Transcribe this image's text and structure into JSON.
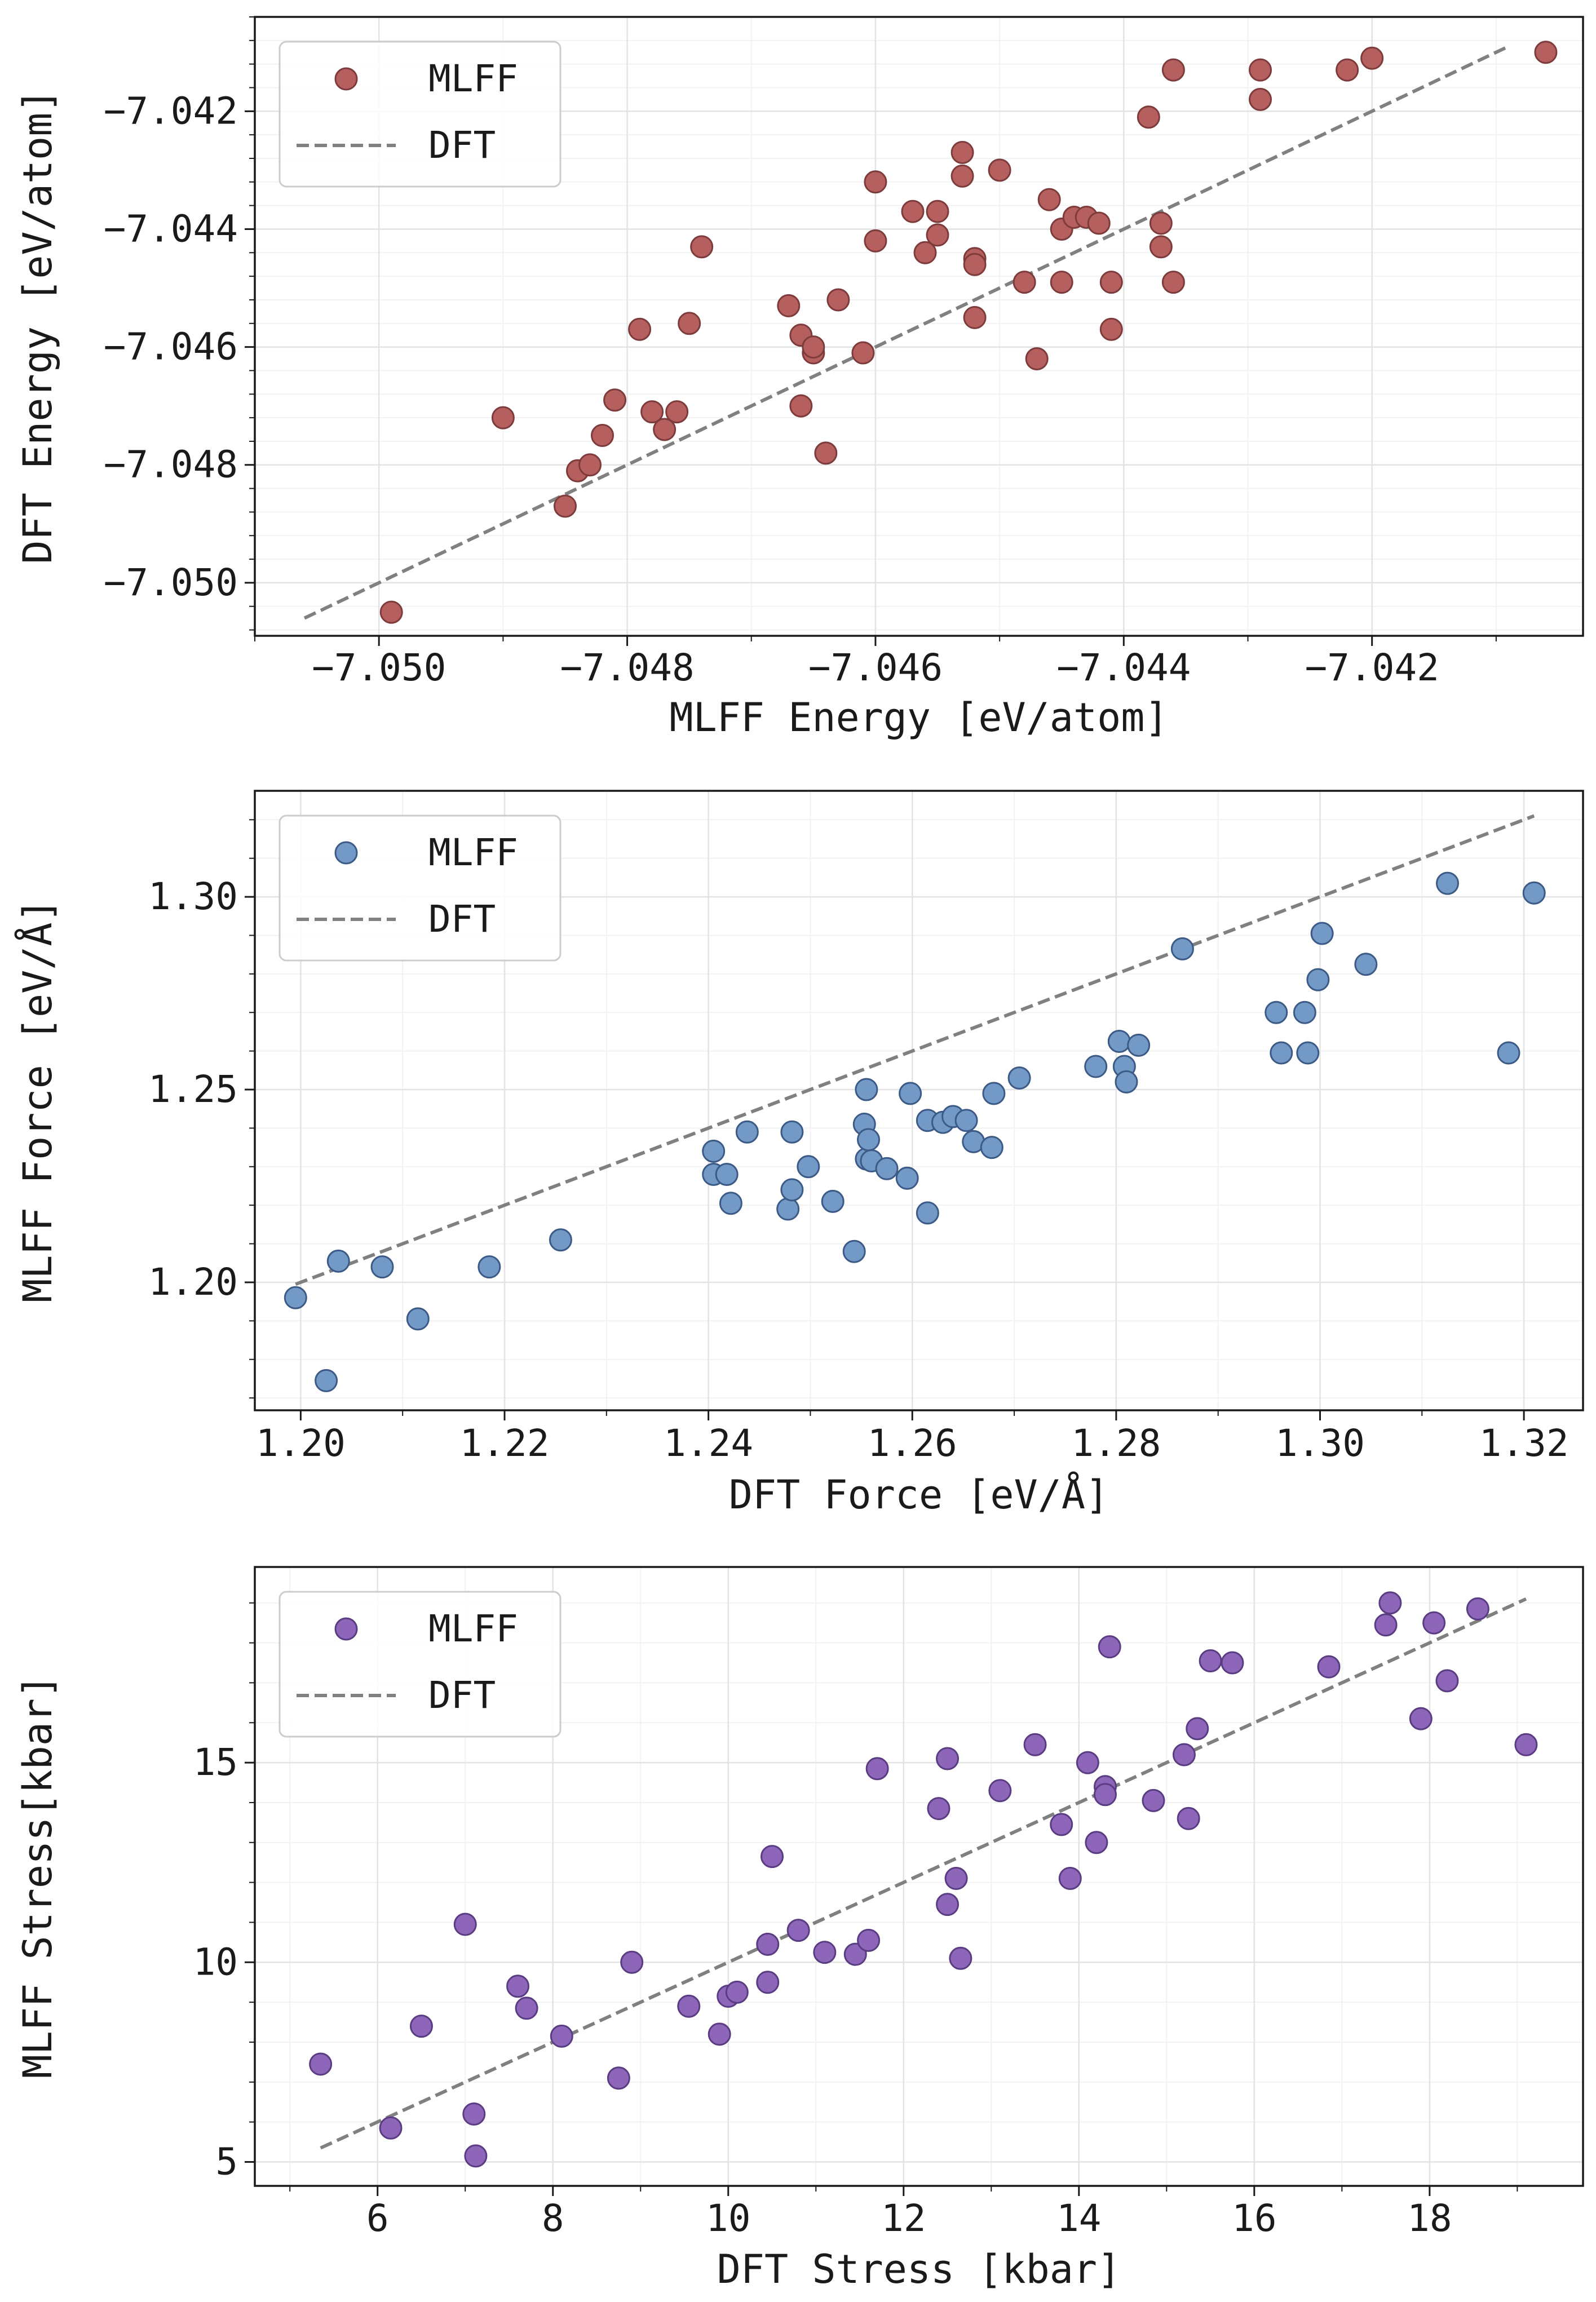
{
  "chart_data": [
    {
      "type": "scatter",
      "xlabel": "MLFF Energy [eV/atom]",
      "ylabel": "DFT Energy [eV/atom]",
      "xlim": [
        -7.051,
        -7.0403
      ],
      "ylim": [
        -7.0509,
        -7.0404
      ],
      "xticks": [
        -7.05,
        -7.048,
        -7.046,
        -7.044,
        -7.042
      ],
      "yticks": [
        -7.05,
        -7.048,
        -7.046,
        -7.044,
        -7.042
      ],
      "xtick_labels": [
        "−7.050",
        "−7.048",
        "−7.046",
        "−7.044",
        "−7.042"
      ],
      "ytick_labels": [
        "−7.050",
        "−7.048",
        "−7.046",
        "−7.044",
        "−7.042"
      ],
      "grid": true,
      "legend": {
        "position": "top-left",
        "entries": [
          "MLFF",
          "DFT"
        ]
      },
      "series": [
        {
          "name": "MLFF",
          "kind": "scatter",
          "color": "#b5605f",
          "edge": "#7d3b3b",
          "x": [
            -7.0499,
            -7.049,
            -7.0485,
            -7.0484,
            -7.0483,
            -7.0482,
            -7.0481,
            -7.0479,
            -7.0478,
            -7.0477,
            -7.0476,
            -7.0475,
            -7.0474,
            -7.0467,
            -7.0466,
            -7.0466,
            -7.0465,
            -7.0465,
            -7.0464,
            -7.0463,
            -7.0461,
            -7.046,
            -7.046,
            -7.0457,
            -7.0456,
            -7.0455,
            -7.0455,
            -7.0453,
            -7.0453,
            -7.0452,
            -7.0452,
            -7.0452,
            -7.045,
            -7.0448,
            -7.0447,
            -7.0446,
            -7.0445,
            -7.0445,
            -7.0444,
            -7.0443,
            -7.0442,
            -7.0441,
            -7.0441,
            -7.0438,
            -7.0437,
            -7.0437,
            -7.0436,
            -7.0436,
            -7.0429,
            -7.0429,
            -7.0422,
            -7.042,
            -7.0406
          ],
          "y": [
            -7.0505,
            -7.0472,
            -7.0487,
            -7.0481,
            -7.048,
            -7.0475,
            -7.0469,
            -7.0457,
            -7.0471,
            -7.0474,
            -7.0471,
            -7.0456,
            -7.0443,
            -7.0453,
            -7.0458,
            -7.047,
            -7.0461,
            -7.046,
            -7.0478,
            -7.0452,
            -7.0461,
            -7.0432,
            -7.0442,
            -7.0437,
            -7.0444,
            -7.0441,
            -7.0437,
            -7.0427,
            -7.0431,
            -7.0445,
            -7.0446,
            -7.0455,
            -7.043,
            -7.0449,
            -7.0462,
            -7.0435,
            -7.044,
            -7.0449,
            -7.0438,
            -7.0438,
            -7.0439,
            -7.0449,
            -7.0457,
            -7.0421,
            -7.0439,
            -7.0443,
            -7.0413,
            -7.0449,
            -7.0418,
            -7.0413,
            -7.0413,
            -7.0411,
            -7.041
          ]
        },
        {
          "name": "DFT",
          "kind": "line",
          "style": "dashed",
          "color": "#808080",
          "x": [
            -7.0506,
            -7.0409
          ],
          "y": [
            -7.0506,
            -7.0409
          ]
        }
      ]
    },
    {
      "type": "scatter",
      "xlabel": "DFT Force [eV/Å]",
      "ylabel": "MLFF Force [eV/Å]",
      "xlim": [
        1.1955,
        1.3258
      ],
      "ylim": [
        1.1668,
        1.3275
      ],
      "xticks": [
        1.2,
        1.22,
        1.24,
        1.26,
        1.28,
        1.3,
        1.32
      ],
      "yticks": [
        1.2,
        1.25,
        1.3
      ],
      "xtick_labels": [
        "1.20",
        "1.22",
        "1.24",
        "1.26",
        "1.28",
        "1.30",
        "1.32"
      ],
      "ytick_labels": [
        "1.20",
        "1.25",
        "1.30"
      ],
      "grid": true,
      "legend": {
        "position": "top-left",
        "entries": [
          "MLFF",
          "DFT"
        ]
      },
      "series": [
        {
          "name": "MLFF",
          "kind": "scatter",
          "color": "#7399c6",
          "edge": "#3c5a86",
          "x": [
            1.1995,
            1.2025,
            1.2037,
            1.208,
            1.2115,
            1.2185,
            1.2255,
            1.2405,
            1.2405,
            1.2418,
            1.2422,
            1.2438,
            1.2478,
            1.2482,
            1.2482,
            1.2498,
            1.2522,
            1.2543,
            1.2553,
            1.2555,
            1.2555,
            1.2557,
            1.256,
            1.2575,
            1.2595,
            1.2598,
            1.2615,
            1.2615,
            1.263,
            1.264,
            1.2653,
            1.266,
            1.2678,
            1.268,
            1.2705,
            1.278,
            1.2803,
            1.2808,
            1.281,
            1.2822,
            1.2865,
            1.2957,
            1.2962,
            1.2985,
            1.2988,
            1.2998,
            1.3002,
            1.3045,
            1.3125,
            1.3185,
            1.321
          ],
          "y": [
            1.196,
            1.1745,
            1.2055,
            1.204,
            1.1905,
            1.204,
            1.211,
            1.234,
            1.228,
            1.228,
            1.2205,
            1.239,
            1.219,
            1.239,
            1.224,
            1.23,
            1.221,
            1.208,
            1.241,
            1.25,
            1.232,
            1.237,
            1.2315,
            1.2295,
            1.227,
            1.249,
            1.242,
            1.218,
            1.2415,
            1.243,
            1.242,
            1.2365,
            1.235,
            1.249,
            1.253,
            1.256,
            1.2625,
            1.256,
            1.252,
            1.2615,
            1.2865,
            1.27,
            1.2595,
            1.27,
            1.2595,
            1.2785,
            1.2905,
            1.2825,
            1.3035,
            1.2595,
            1.301
          ]
        },
        {
          "name": "DFT",
          "kind": "line",
          "style": "dashed",
          "color": "#808080",
          "x": [
            1.1995,
            1.321
          ],
          "y": [
            1.1995,
            1.321
          ]
        }
      ]
    },
    {
      "type": "scatter",
      "xlabel": "DFT Stress [kbar]",
      "ylabel": "MLFF Stress[kbar]",
      "xlim": [
        4.6,
        19.75
      ],
      "ylim": [
        4.4,
        19.9
      ],
      "xticks": [
        6,
        8,
        10,
        12,
        14,
        16,
        18
      ],
      "yticks": [
        5,
        10,
        15
      ],
      "xtick_labels": [
        "6",
        "8",
        "10",
        "12",
        "14",
        "16",
        "18"
      ],
      "ytick_labels": [
        "5",
        "10",
        "15"
      ],
      "grid": true,
      "legend": {
        "position": "top-left",
        "entries": [
          "MLFF",
          "DFT"
        ]
      },
      "series": [
        {
          "name": "MLFF",
          "kind": "scatter",
          "color": "#8d66b9",
          "edge": "#5a3c82",
          "x": [
            5.35,
            6.15,
            6.5,
            7.0,
            7.1,
            7.12,
            7.6,
            7.7,
            8.1,
            8.75,
            8.9,
            9.55,
            9.9,
            10.0,
            10.1,
            10.45,
            10.45,
            10.5,
            10.8,
            11.1,
            11.45,
            11.6,
            11.7,
            12.4,
            12.5,
            12.5,
            12.6,
            12.65,
            13.1,
            13.5,
            13.8,
            13.9,
            14.1,
            14.2,
            14.3,
            14.3,
            14.35,
            14.85,
            15.2,
            15.25,
            15.35,
            15.5,
            15.75,
            16.85,
            17.5,
            17.55,
            17.9,
            18.05,
            18.2,
            18.55,
            19.1
          ],
          "y": [
            7.45,
            5.85,
            8.4,
            10.95,
            6.2,
            5.15,
            9.4,
            8.85,
            8.15,
            7.1,
            10.0,
            8.9,
            8.2,
            9.15,
            9.25,
            9.5,
            10.45,
            12.65,
            10.8,
            10.25,
            10.2,
            10.55,
            14.85,
            13.85,
            15.1,
            11.45,
            12.1,
            10.1,
            14.3,
            15.45,
            13.45,
            12.1,
            15.0,
            13.0,
            14.4,
            14.2,
            17.9,
            14.05,
            15.2,
            13.6,
            15.85,
            17.55,
            17.5,
            17.4,
            18.45,
            19.0,
            16.1,
            18.5,
            17.05,
            18.85,
            15.45
          ]
        },
        {
          "name": "DFT",
          "kind": "line",
          "style": "dashed",
          "color": "#808080",
          "x": [
            5.35,
            19.1
          ],
          "y": [
            5.35,
            19.1
          ]
        }
      ]
    }
  ]
}
